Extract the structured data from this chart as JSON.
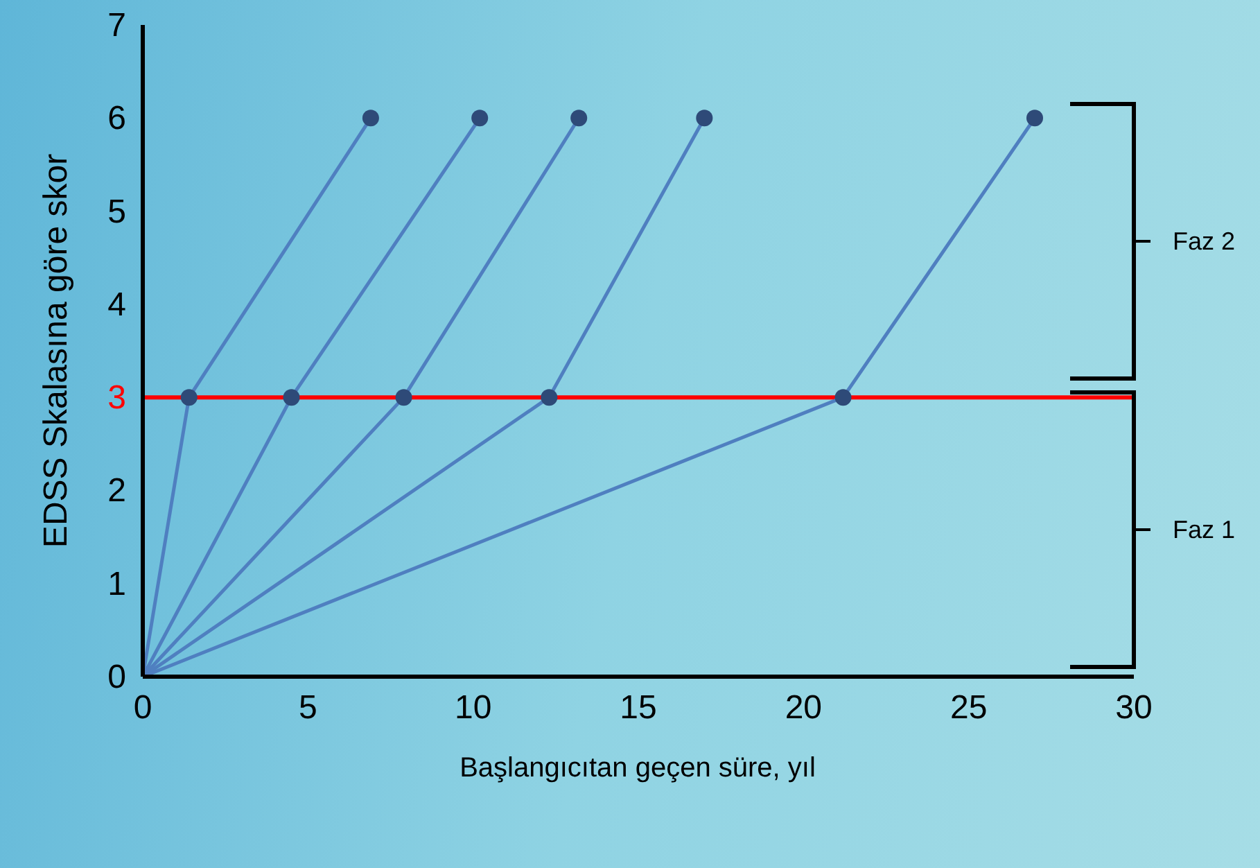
{
  "chart_data": {
    "type": "line",
    "xlabel": "Başlangıcıtan geçen süre, yıl",
    "ylabel": "EDSS Skalasına göre skor",
    "xlim": [
      0,
      30
    ],
    "xticks": [
      0,
      5,
      10,
      15,
      20,
      25,
      30
    ],
    "ylim": [
      0,
      7
    ],
    "yticks": [
      0,
      1,
      2,
      3,
      4,
      5,
      6,
      7
    ],
    "series": [
      {
        "color": "#4f7fc0",
        "x": [
          0,
          1.4,
          6.9
        ],
        "values": [
          0,
          3,
          6
        ]
      },
      {
        "color": "#4f7fc0",
        "x": [
          0,
          4.5,
          10.2
        ],
        "values": [
          0,
          3,
          6
        ]
      },
      {
        "color": "#4f7fc0",
        "x": [
          0,
          7.9,
          13.2
        ],
        "values": [
          0,
          3,
          6
        ]
      },
      {
        "color": "#4f7fc0",
        "x": [
          0,
          12.3,
          17.0
        ],
        "values": [
          0,
          3,
          6
        ]
      },
      {
        "color": "#4f7fc0",
        "x": [
          0,
          21.2,
          27.0
        ],
        "values": [
          0,
          3,
          6
        ]
      }
    ],
    "marker": "circle",
    "grid": false,
    "ref_lines": [
      {
        "axis": "y",
        "value": 3,
        "color": "#ff0000"
      }
    ],
    "annotations": [
      "Faz 2",
      "Faz 1"
    ]
  }
}
